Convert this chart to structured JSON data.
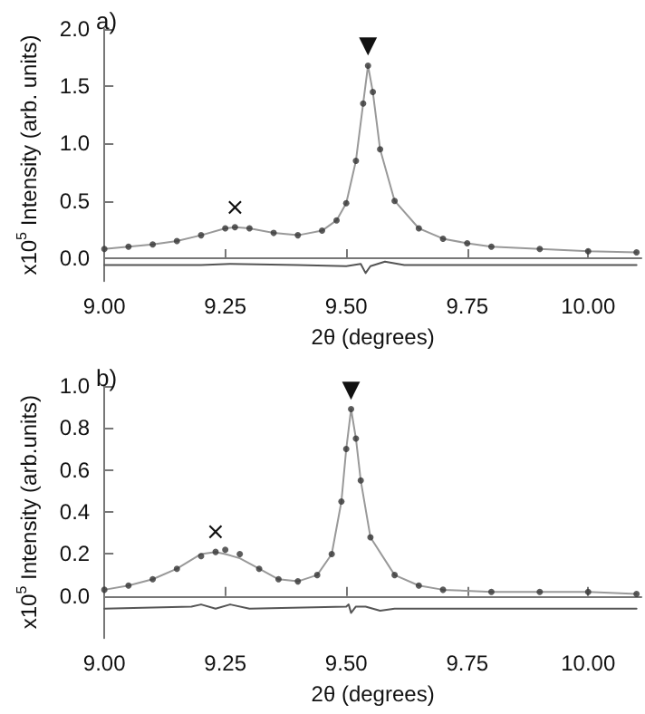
{
  "chart_data": [
    {
      "type": "line",
      "title": "a)",
      "xlabel": "2θ (degrees)",
      "ylabel": "x10$^{5}$ Intensity (arb. units)",
      "xlim": [
        9,
        10.11
      ],
      "xticks": [
        {
          "value": 9,
          "label": "9.00"
        },
        {
          "value": 9.25,
          "label": "9.25"
        },
        {
          "value": 9.5,
          "label": "9.50"
        },
        {
          "value": 9.75,
          "label": "9.75"
        },
        {
          "value": 10,
          "label": "10.00"
        }
      ],
      "ylim": [
        -0.2,
        2.0
      ],
      "yticks": [
        {
          "value": 0,
          "label": "0.0"
        },
        {
          "value": 0.5,
          "label": "0.5"
        },
        {
          "value": 1,
          "label": "1.0"
        },
        {
          "value": 1.5,
          "label": "1.5"
        },
        {
          "value": 2,
          "label": "2.0"
        }
      ],
      "grid": false,
      "annotations": [
        {
          "text": "×",
          "x": 9.27,
          "y": 0.27
        },
        {
          "text": "▼",
          "x": 9.545,
          "y": 1.68
        }
      ],
      "series": [
        {
          "type": "scatter",
          "marker": "circle",
          "color": "#333333",
          "x": [
            9.0,
            9.05,
            9.1,
            9.15,
            9.2,
            9.25,
            9.27,
            9.3,
            9.35,
            9.4,
            9.45,
            9.48,
            9.5,
            9.52,
            9.535,
            9.545,
            9.555,
            9.57,
            9.6,
            9.65,
            9.7,
            9.75,
            9.8,
            9.9,
            10.0,
            10.1
          ],
          "values": [
            0.08,
            0.1,
            0.12,
            0.15,
            0.2,
            0.26,
            0.27,
            0.26,
            0.22,
            0.2,
            0.24,
            0.33,
            0.48,
            0.85,
            1.35,
            1.68,
            1.45,
            0.95,
            0.5,
            0.26,
            0.17,
            0.13,
            0.1,
            0.08,
            0.06,
            0.05
          ]
        },
        {
          "marker": "none",
          "color": "#999999",
          "x": [
            9.0,
            9.05,
            9.1,
            9.15,
            9.2,
            9.25,
            9.27,
            9.3,
            9.35,
            9.4,
            9.45,
            9.48,
            9.5,
            9.52,
            9.535,
            9.545,
            9.555,
            9.57,
            9.6,
            9.65,
            9.7,
            9.75,
            9.8,
            9.9,
            10.0,
            10.1
          ],
          "values": [
            0.08,
            0.1,
            0.12,
            0.15,
            0.2,
            0.26,
            0.27,
            0.26,
            0.22,
            0.2,
            0.24,
            0.33,
            0.48,
            0.85,
            1.35,
            1.68,
            1.45,
            0.95,
            0.5,
            0.26,
            0.17,
            0.13,
            0.1,
            0.08,
            0.06,
            0.05
          ]
        },
        {
          "marker": "none",
          "color": "#555555",
          "x": [
            9.0,
            9.2,
            9.26,
            9.4,
            9.5,
            9.53,
            9.54,
            9.55,
            9.58,
            9.62,
            9.7,
            10.1
          ],
          "values": [
            -0.06,
            -0.06,
            -0.05,
            -0.06,
            -0.07,
            -0.05,
            -0.13,
            -0.07,
            -0.03,
            -0.06,
            -0.06,
            -0.06
          ]
        }
      ]
    },
    {
      "type": "line",
      "title": "b)",
      "xlabel": "2θ (degrees)",
      "ylabel": "x10$^{5}$ Intensity (arb.units)",
      "xlim": [
        9,
        10.11
      ],
      "xticks": [
        {
          "value": 9,
          "label": "9.00"
        },
        {
          "value": 9.25,
          "label": "9.25"
        },
        {
          "value": 9.5,
          "label": "9.50"
        },
        {
          "value": 9.75,
          "label": "9.75"
        },
        {
          "value": 10,
          "label": "10.00"
        }
      ],
      "ylim": [
        -0.2,
        1.0
      ],
      "yticks": [
        {
          "value": 0,
          "label": "0.0"
        },
        {
          "value": 0.2,
          "label": "0.2"
        },
        {
          "value": 0.4,
          "label": "0.4"
        },
        {
          "value": 0.6,
          "label": "0.6"
        },
        {
          "value": 0.8,
          "label": "0.8"
        },
        {
          "value": 1,
          "label": "1.0"
        }
      ],
      "grid": false,
      "annotations": [
        {
          "text": "×",
          "x": 9.23,
          "y": 0.21
        },
        {
          "text": "▼",
          "x": 9.51,
          "y": 0.89
        }
      ],
      "series": [
        {
          "type": "scatter",
          "marker": "circle",
          "color": "#333333",
          "x": [
            9.0,
            9.05,
            9.1,
            9.15,
            9.2,
            9.23,
            9.25,
            9.28,
            9.32,
            9.36,
            9.4,
            9.44,
            9.47,
            9.49,
            9.5,
            9.51,
            9.52,
            9.53,
            9.55,
            9.6,
            9.65,
            9.7,
            9.8,
            9.9,
            10.0,
            10.1
          ],
          "values": [
            0.03,
            0.05,
            0.08,
            0.13,
            0.19,
            0.21,
            0.22,
            0.2,
            0.13,
            0.08,
            0.07,
            0.1,
            0.2,
            0.45,
            0.7,
            0.89,
            0.75,
            0.55,
            0.28,
            0.1,
            0.05,
            0.03,
            0.02,
            0.02,
            0.02,
            0.01
          ]
        },
        {
          "marker": "none",
          "color": "#999999",
          "x": [
            9.0,
            9.05,
            9.1,
            9.15,
            9.2,
            9.23,
            9.25,
            9.28,
            9.32,
            9.36,
            9.4,
            9.44,
            9.47,
            9.49,
            9.5,
            9.51,
            9.52,
            9.53,
            9.55,
            9.6,
            9.65,
            9.7,
            9.8,
            9.9,
            10.0,
            10.1
          ],
          "values": [
            0.03,
            0.05,
            0.08,
            0.13,
            0.2,
            0.21,
            0.2,
            0.18,
            0.13,
            0.08,
            0.07,
            0.1,
            0.2,
            0.45,
            0.7,
            0.89,
            0.75,
            0.55,
            0.28,
            0.1,
            0.05,
            0.03,
            0.02,
            0.02,
            0.02,
            0.01
          ]
        },
        {
          "marker": "none",
          "color": "#555555",
          "x": [
            9.0,
            9.18,
            9.2,
            9.23,
            9.26,
            9.3,
            9.5,
            9.505,
            9.51,
            9.52,
            9.54,
            9.57,
            9.6,
            10.1
          ],
          "values": [
            -0.06,
            -0.05,
            -0.04,
            -0.06,
            -0.04,
            -0.06,
            -0.05,
            -0.04,
            -0.08,
            -0.05,
            -0.05,
            -0.07,
            -0.06,
            -0.06
          ]
        }
      ]
    }
  ]
}
